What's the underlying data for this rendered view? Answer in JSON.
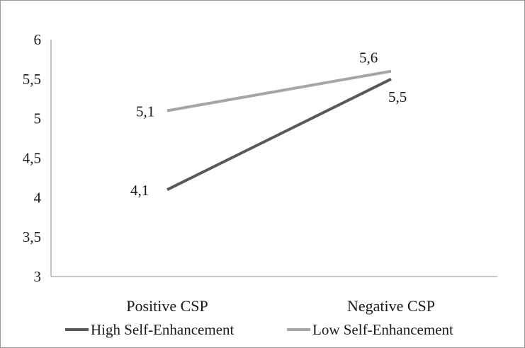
{
  "chart_data": {
    "type": "line",
    "categories": [
      "Positive CSP",
      "Negative CSP"
    ],
    "series": [
      {
        "name": "High Self-Enhancement",
        "values": [
          4.1,
          5.5
        ],
        "labels": [
          "4,1",
          "5,5"
        ],
        "color": "#595959"
      },
      {
        "name": "Low Self-Enhancement",
        "values": [
          5.1,
          5.6
        ],
        "labels": [
          "5,1",
          "5,6"
        ],
        "color": "#a6a6a6"
      }
    ],
    "yticks": [
      3,
      3.5,
      4,
      4.5,
      5,
      5.5,
      6
    ],
    "ytick_labels": [
      "3",
      "3,5",
      "4",
      "4,5",
      "5",
      "5,5",
      "6"
    ],
    "ylim": [
      3,
      6
    ],
    "grid": false,
    "legend": "bottom",
    "axis_color": "#8c8c8c"
  }
}
